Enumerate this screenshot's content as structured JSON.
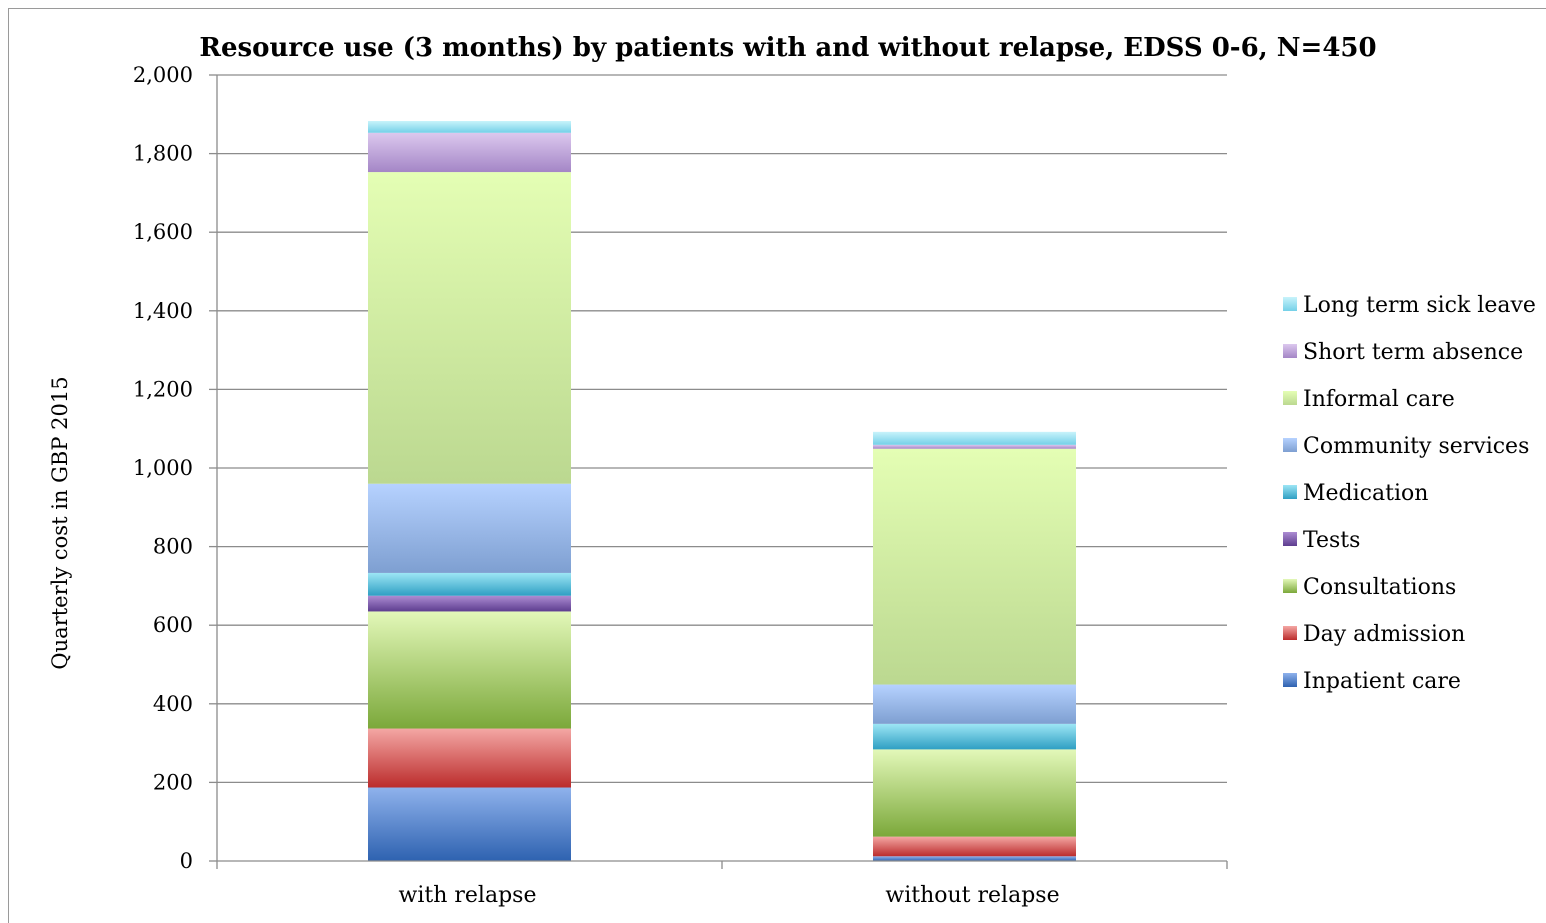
{
  "chart_data": {
    "type": "bar",
    "stacked": true,
    "title": "Resource use (3 months) by patients with and without relapse, EDSS 0-6, N=450",
    "xlabel": "",
    "ylabel": "Quarterly cost in GBP 2015",
    "ylim": [
      0,
      2000
    ],
    "yticks": [
      0,
      200,
      400,
      600,
      800,
      1000,
      1200,
      1400,
      1600,
      1800,
      2000
    ],
    "ytick_labels": [
      "0",
      "200",
      "400",
      "600",
      "800",
      "1,000",
      "1,200",
      "1,400",
      "1,600",
      "1,800",
      "2,000"
    ],
    "categories": [
      "with relapse",
      "without relapse"
    ],
    "grid": true,
    "legend_position": "right",
    "series": [
      {
        "name": "Inpatient care",
        "values": [
          187,
          12
        ],
        "colors": [
          "#8fb2ec",
          "#2e62b0"
        ]
      },
      {
        "name": "Day admission",
        "values": [
          150,
          50
        ],
        "colors": [
          "#f4a7a4",
          "#bb2c2c"
        ]
      },
      {
        "name": "Consultations",
        "values": [
          298,
          222
        ],
        "colors": [
          "#e3f8b9",
          "#7ba83a"
        ]
      },
      {
        "name": "Tests",
        "values": [
          40,
          0
        ],
        "colors": [
          "#ad8dd3",
          "#5d3d8f"
        ]
      },
      {
        "name": "Medication",
        "values": [
          58,
          65
        ],
        "colors": [
          "#9de6f5",
          "#2f9fc3"
        ]
      },
      {
        "name": "Community services",
        "values": [
          227,
          100
        ],
        "colors": [
          "#b6d2ff",
          "#7e9fd1"
        ]
      },
      {
        "name": "Informal care",
        "values": [
          793,
          600
        ],
        "colors": [
          "#e4feb4",
          "#bbd890"
        ]
      },
      {
        "name": "Short term absence",
        "values": [
          100,
          10
        ],
        "colors": [
          "#dcc8ee",
          "#a486c6"
        ]
      },
      {
        "name": "Long term sick leave",
        "values": [
          30,
          33
        ],
        "colors": [
          "#c8f3fb",
          "#74d0e8"
        ]
      }
    ]
  }
}
